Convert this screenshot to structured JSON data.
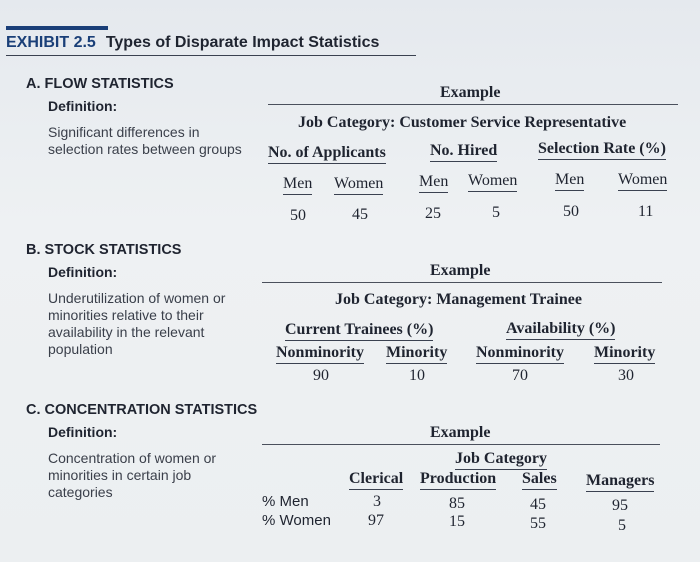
{
  "exhibit": {
    "number": "EXHIBIT 2.5",
    "title": "Types of Disparate Impact Statistics"
  },
  "flow": {
    "heading": "A. FLOW STATISTICS",
    "definition_label": "Definition:",
    "definition": "Significant differences in selection rates between groups",
    "example_label": "Example",
    "job_category": "Job Category: Customer Service Representative",
    "col_groups": [
      "No. of Applicants",
      "No. Hired",
      "Selection Rate (%)"
    ],
    "sub_headers": [
      "Men",
      "Women",
      "Men",
      "Women",
      "Men",
      "Women"
    ],
    "values": [
      "50",
      "45",
      "25",
      "5",
      "50",
      "11"
    ]
  },
  "stock": {
    "heading": "B. STOCK STATISTICS",
    "definition_label": "Definition:",
    "definition": "Underutilization of women or minorities relative to their availability in the relevant population",
    "example_label": "Example",
    "job_category": "Job Category: Management Trainee",
    "col_groups": [
      "Current Trainees (%)",
      "Availability (%)"
    ],
    "sub_headers": [
      "Nonminority",
      "Minority",
      "Nonminority",
      "Minority"
    ],
    "values": [
      "90",
      "10",
      "70",
      "30"
    ]
  },
  "concentration": {
    "heading": "C. CONCENTRATION STATISTICS",
    "definition_label": "Definition:",
    "definition": "Concentration of women or minorities in certain job categories",
    "example_label": "Example",
    "job_category": "Job Category",
    "columns": [
      "Clerical",
      "Production",
      "Sales",
      "Managers"
    ],
    "rows": [
      {
        "label": "% Men",
        "values": [
          "3",
          "85",
          "45",
          "95"
        ]
      },
      {
        "label": "% Women",
        "values": [
          "97",
          "15",
          "55",
          "5"
        ]
      }
    ]
  }
}
